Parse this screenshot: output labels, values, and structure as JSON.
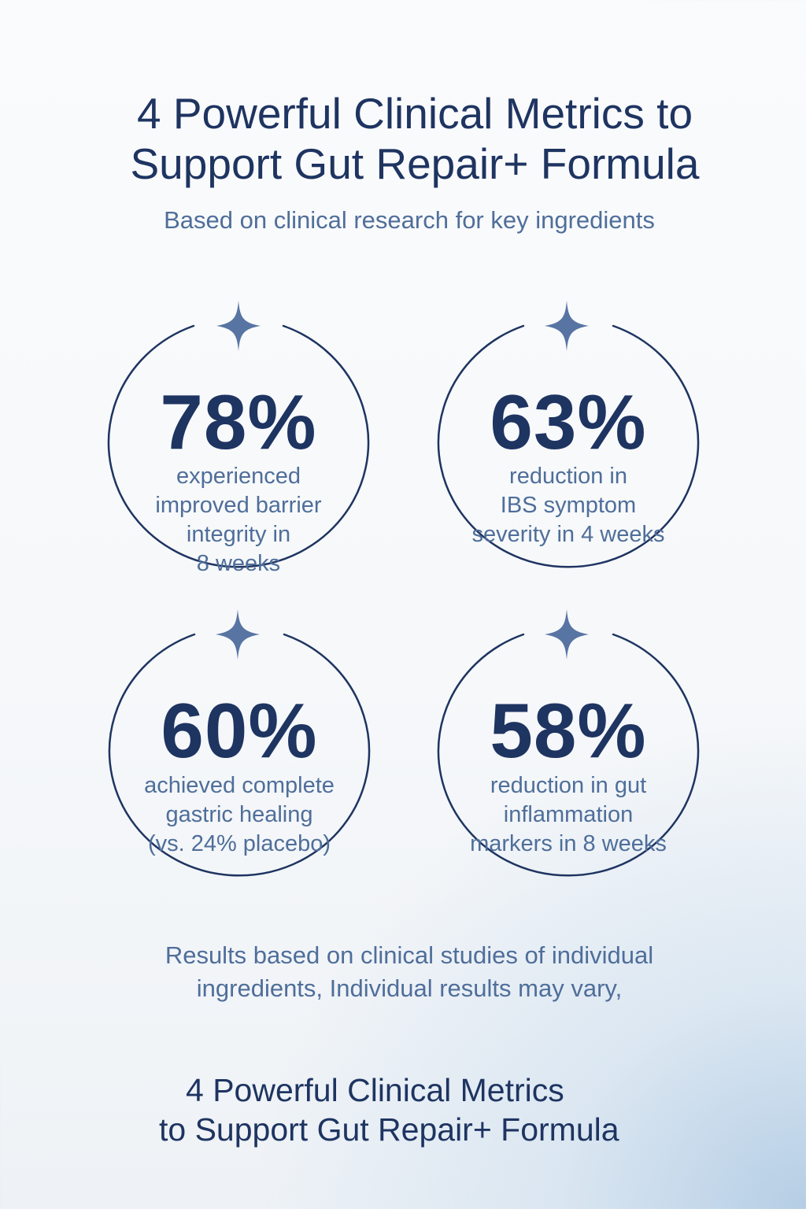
{
  "header": {
    "title_line1": "4 Powerful Clinical Metrics to",
    "title_line2": "Support Gut Repair+ Formula",
    "subtitle": "Based on clinical research for key ingredients"
  },
  "metrics": [
    {
      "value": "78%",
      "description_lines": [
        "experienced",
        "improved barrier",
        "integrity in",
        "8 weeks"
      ],
      "icon": "sparkle-icon"
    },
    {
      "value": "63%",
      "description_lines": [
        "reduction in",
        "IBS symptom",
        "severity in 4 weeks"
      ],
      "icon": "sparkle-icon"
    },
    {
      "value": "60%",
      "description_lines": [
        "achieved complete",
        "gastric healing",
        "(vs. 24% placebo)"
      ],
      "icon": "sparkle-icon"
    },
    {
      "value": "58%",
      "description_lines": [
        "reduction in gut",
        "inflammation",
        "markers in 8 weeks"
      ],
      "icon": "sparkle-icon"
    }
  ],
  "disclaimer": {
    "line1": "Results based on clinical studies of individual",
    "line2": "ingredients, Individual results may vary,"
  },
  "footer": {
    "title_line1": "4 Powerful Clinical Metrics",
    "title_line2": "to Support Gut Repair+ Formula"
  },
  "colors": {
    "navy": "#1e3461",
    "slate_blue": "#4f6e9a",
    "sparkle": "#5874a3",
    "background_tint": "#c4d6e8"
  }
}
